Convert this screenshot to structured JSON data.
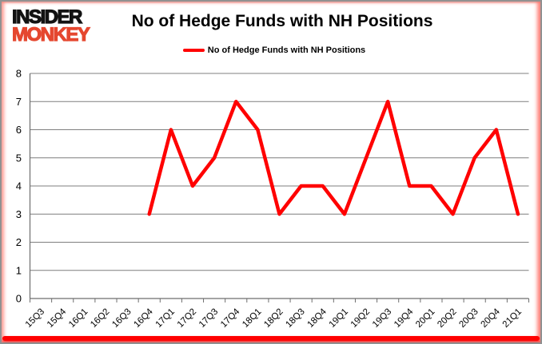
{
  "header": {
    "logo": {
      "line1": "INSIDER",
      "line2": "MONKEY",
      "monkey_color": "#E5472F"
    },
    "title": "No of Hedge Funds with NH Positions",
    "legend": {
      "label": "No of Hedge Funds with NH Positions",
      "line_color": "#FF0000"
    }
  },
  "chart_data": {
    "type": "line",
    "title": "No of Hedge Funds with NH Positions",
    "categories": [
      "15Q3",
      "15Q4",
      "16Q1",
      "16Q2",
      "16Q3",
      "16Q4",
      "17Q1",
      "17Q2",
      "17Q3",
      "17Q4",
      "18Q1",
      "18Q2",
      "18Q3",
      "18Q4",
      "19Q1",
      "19Q2",
      "19Q3",
      "19Q4",
      "20Q1",
      "20Q2",
      "20Q3",
      "20Q4",
      "21Q1"
    ],
    "series": [
      {
        "name": "No of Hedge Funds with NH Positions",
        "color": "#FF0000",
        "values": [
          null,
          null,
          null,
          null,
          null,
          3,
          6,
          4,
          5,
          7,
          6,
          3,
          4,
          4,
          3,
          5,
          7,
          4,
          4,
          3,
          5,
          6,
          3
        ]
      }
    ],
    "xlabel": "",
    "ylabel": "",
    "ylim": [
      0,
      8
    ],
    "y_ticks": [
      0,
      1,
      2,
      3,
      4,
      5,
      6,
      7,
      8
    ],
    "grid": true,
    "legend_position": "top",
    "gridline_color": "#7F7F7F",
    "axis_color": "#6E6E6E",
    "text_color": "#000000"
  }
}
